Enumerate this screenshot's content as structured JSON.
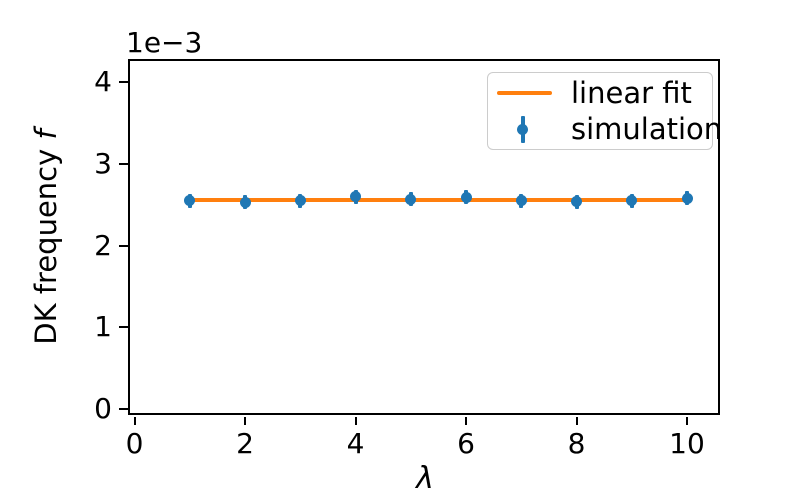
{
  "chart_data": {
    "type": "scatter",
    "title": "",
    "xlabel": "λ",
    "ylabel_text": "DK frequency",
    "ylabel_symbol": "f",
    "offset_text": "1e−3",
    "x_ticks": [
      0,
      2,
      4,
      6,
      8,
      10
    ],
    "y_ticks": [
      0,
      1,
      2,
      3,
      4
    ],
    "xlim": [
      -0.1,
      10.6
    ],
    "ylim": [
      -7e-05,
      0.00427
    ],
    "y_scale_factor": "1e-3",
    "grid": false,
    "series": [
      {
        "name": "linear fit",
        "kind": "line",
        "color": "#ff7f0e",
        "x": [
          1,
          10
        ],
        "y": [
          0.00256,
          0.00256
        ]
      },
      {
        "name": "simulation",
        "kind": "errorbar",
        "color": "#1f77b4",
        "x": [
          1,
          2,
          3,
          4,
          5,
          6,
          7,
          8,
          9,
          10
        ],
        "y": [
          0.00255,
          0.00253,
          0.00255,
          0.0026,
          0.00257,
          0.00259,
          0.00255,
          0.00254,
          0.00255,
          0.00258
        ],
        "yerr": [
          4e-05,
          4e-05,
          4e-05,
          4e-05,
          4e-05,
          4e-05,
          4e-05,
          4e-05,
          4e-05,
          4e-05
        ]
      }
    ],
    "legend": {
      "position": "upper right",
      "entries": [
        {
          "label": "linear fit",
          "marker": "line",
          "color": "#ff7f0e"
        },
        {
          "label": "simulation",
          "marker": "errorbar-point",
          "color": "#1f77b4"
        }
      ]
    }
  }
}
